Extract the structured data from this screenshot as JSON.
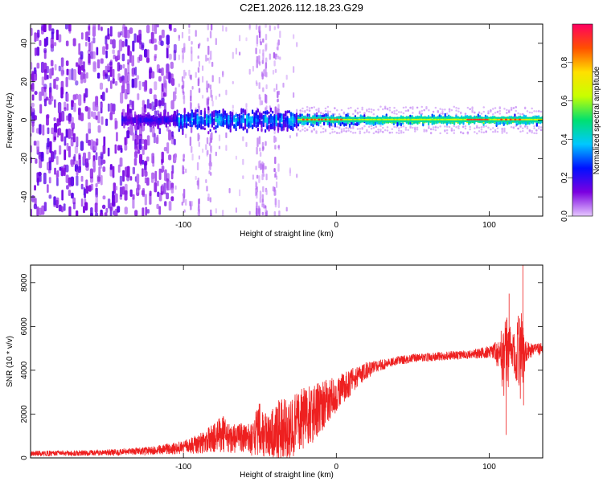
{
  "figure": {
    "title": "C2E1.2026.112.18.23.G29"
  },
  "chart_data": [
    {
      "type": "heatmap",
      "name": "spectrogram",
      "title": "C2E1.2026.112.18.23.G29",
      "xlabel": "Height of straight line (km)",
      "ylabel": "Frequency (Hz)",
      "xlim": [
        -200,
        135
      ],
      "ylim": [
        -50,
        50
      ],
      "xticks": [
        -100,
        0,
        100
      ],
      "yticks": [
        -40,
        -20,
        0,
        20,
        40
      ],
      "colorbar": {
        "label": "Normalized spectral amplitude",
        "range": [
          0.0,
          1.0
        ],
        "ticks": [
          0.0,
          0.2,
          0.4,
          0.6,
          0.8
        ],
        "colormap": [
          "#e6c8ff",
          "#7b00e0",
          "#0010ff",
          "#00c8ff",
          "#00e070",
          "#c8ff00",
          "#ffe000",
          "#ff5000",
          "#ff0060"
        ]
      },
      "structure": {
        "noise_region_x": [
          -200,
          -105
        ],
        "transition_region_x": [
          -105,
          -25
        ],
        "tone_region_x": [
          -25,
          135
        ],
        "tone_frequency_hz": 0,
        "tone_peak_amplitude": 0.95
      }
    },
    {
      "type": "line",
      "name": "snr",
      "xlabel": "Height of straight line (km)",
      "ylabel": "SNR (10 * v/v)",
      "xlim": [
        -200,
        135
      ],
      "ylim": [
        0,
        8800
      ],
      "xticks": [
        -100,
        0,
        100
      ],
      "yticks": [
        0,
        2000,
        4000,
        6000,
        8000
      ],
      "color": "#ee2020",
      "series": [
        {
          "name": "SNR",
          "x": [
            -200,
            -180,
            -160,
            -140,
            -120,
            -100,
            -90,
            -80,
            -75,
            -70,
            -65,
            -60,
            -55,
            -50,
            -45,
            -40,
            -35,
            -30,
            -25,
            -20,
            -15,
            -10,
            -5,
            0,
            5,
            10,
            15,
            20,
            25,
            30,
            40,
            50,
            60,
            70,
            80,
            90,
            95,
            100,
            103,
            106,
            108,
            110,
            112,
            115,
            118,
            120,
            122,
            124,
            126,
            130,
            135
          ],
          "y": [
            200,
            210,
            230,
            260,
            330,
            480,
            650,
            900,
            1100,
            900,
            950,
            800,
            900,
            1300,
            1000,
            1200,
            1400,
            1300,
            1600,
            1900,
            2000,
            2300,
            2600,
            2900,
            3200,
            3500,
            3800,
            4000,
            4150,
            4250,
            4450,
            4550,
            4600,
            4650,
            4700,
            4750,
            4800,
            4850,
            4900,
            4700,
            4800,
            3600,
            4700,
            5000,
            4600,
            4900,
            4700,
            4850,
            4900,
            4950,
            5000
          ],
          "noise_amplitude": [
            120,
            130,
            130,
            150,
            200,
            300,
            450,
            700,
            900,
            700,
            750,
            700,
            800,
            1300,
            900,
            1200,
            1500,
            1300,
            1500,
            1400,
            1300,
            1200,
            1000,
            800,
            700,
            600,
            500,
            400,
            300,
            250,
            220,
            200,
            200,
            200,
            200,
            220,
            250,
            300,
            400,
            700,
            1300,
            2600,
            1800,
            800,
            1200,
            2500,
            1500,
            500,
            400,
            300,
            300
          ]
        }
      ],
      "spikes": [
        {
          "x": 111,
          "y": 1050
        },
        {
          "x": 113,
          "y": 7500
        },
        {
          "x": 122,
          "y": 8800
        },
        {
          "x": 122.5,
          "y": 2400
        }
      ]
    }
  ]
}
